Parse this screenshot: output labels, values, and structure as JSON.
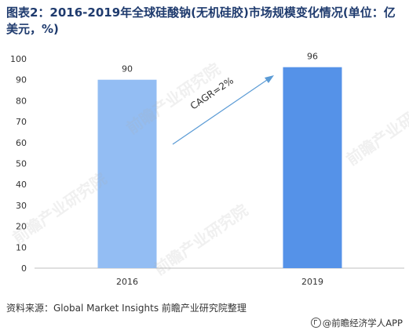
{
  "title": "图表2：2016-2019年全球硅酸钠(无机硅胶)市场规模变化情况(单位：亿美元，%)",
  "chart_data": {
    "type": "bar",
    "categories": [
      "2016",
      "2019"
    ],
    "values": [
      90,
      96
    ],
    "data_labels": [
      "90",
      "96"
    ],
    "bar_colors": [
      "#93bdf3",
      "#5592e8"
    ],
    "ylim": [
      0,
      100
    ],
    "yticks": [
      "0",
      "10",
      "20",
      "30",
      "40",
      "50",
      "60",
      "70",
      "80",
      "90",
      "100"
    ],
    "grid": false,
    "annotation": "CAGR=2%",
    "annotation_color": "#5b9bd5"
  },
  "source": "资料来源：Global Market Insights 前瞻产业研究院整理",
  "brand": "@前瞻经济学人APP",
  "watermark": "前瞻产业研究院"
}
